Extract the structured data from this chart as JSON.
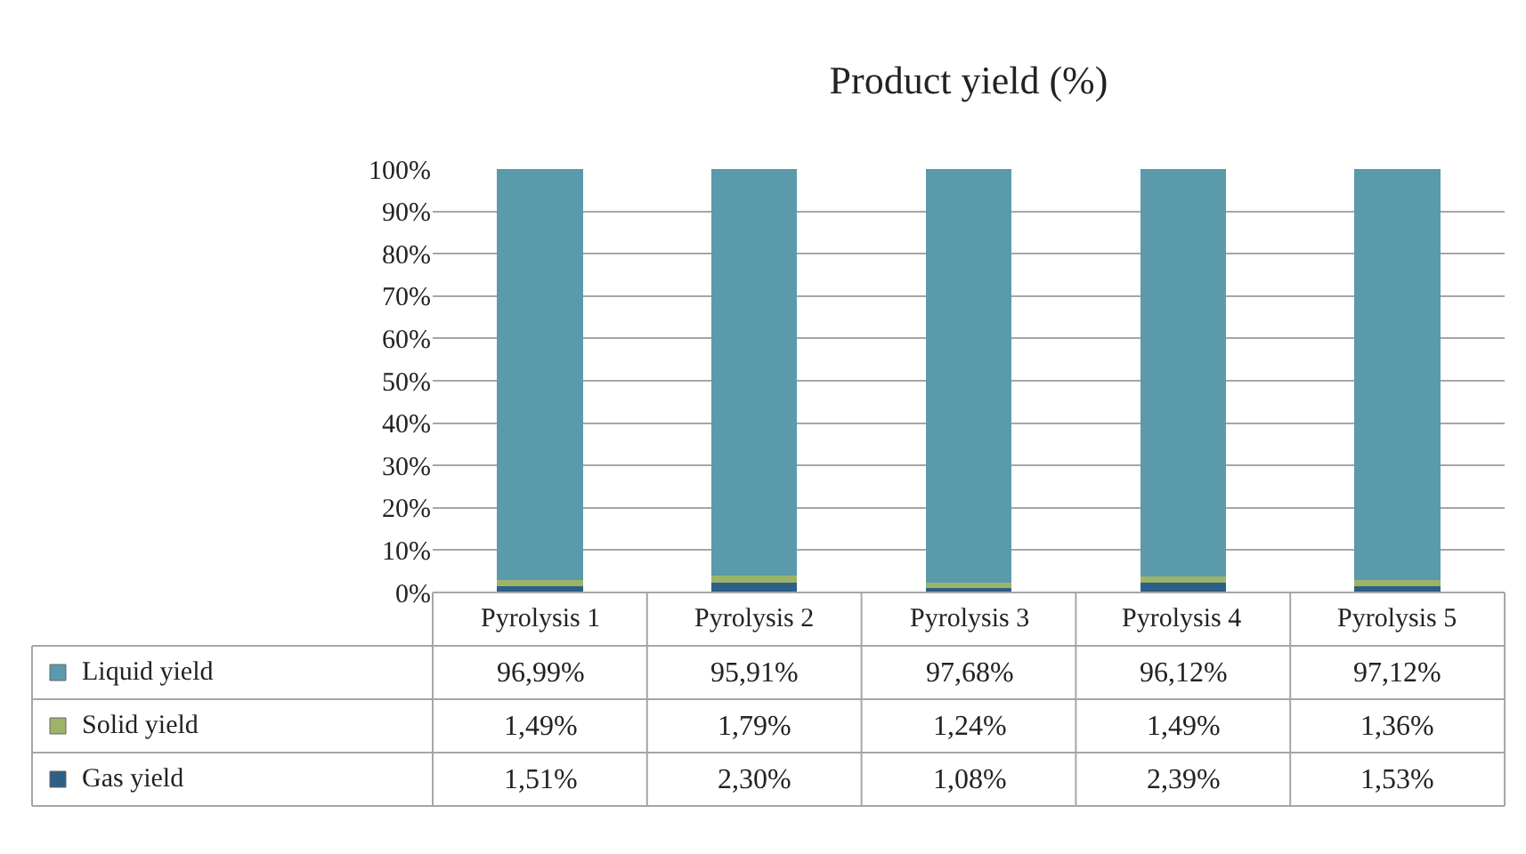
{
  "chart_data": {
    "type": "bar",
    "title": "Product yield (%)",
    "stacked": true,
    "categories": [
      "Pyrolysis 1",
      "Pyrolysis 2",
      "Pyrolysis 3",
      "Pyrolysis 4",
      "Pyrolysis 5"
    ],
    "series": [
      {
        "name": "Gas yield",
        "color": "#2e5f86",
        "values": [
          1.51,
          2.3,
          1.08,
          2.39,
          1.53
        ],
        "value_labels": [
          "1,51%",
          "2,30%",
          "1,08%",
          "2,39%",
          "1,53%"
        ]
      },
      {
        "name": "Solid yield",
        "color": "#9bb46a",
        "values": [
          1.49,
          1.79,
          1.24,
          1.49,
          1.36
        ],
        "value_labels": [
          "1,49%",
          "1,79%",
          "1,24%",
          "1,49%",
          "1,36%"
        ]
      },
      {
        "name": "Liquid yield",
        "color": "#5a9aab",
        "values": [
          96.99,
          95.91,
          97.68,
          96.12,
          97.12
        ],
        "value_labels": [
          "96,99%",
          "95,91%",
          "97,68%",
          "96,12%",
          "97,12%"
        ]
      }
    ],
    "ylim": [
      0,
      100
    ],
    "yticks": [
      {
        "value": 0,
        "label": "0%"
      },
      {
        "value": 10,
        "label": "10%"
      },
      {
        "value": 20,
        "label": "20%"
      },
      {
        "value": 30,
        "label": "30%"
      },
      {
        "value": 40,
        "label": "40%"
      },
      {
        "value": 50,
        "label": "50%"
      },
      {
        "value": 60,
        "label": "60%"
      },
      {
        "value": 70,
        "label": "70%"
      },
      {
        "value": 80,
        "label": "80%"
      },
      {
        "value": 90,
        "label": "90%"
      },
      {
        "value": 100,
        "label": "100%"
      }
    ],
    "grid": "y",
    "legend": "bottom"
  }
}
